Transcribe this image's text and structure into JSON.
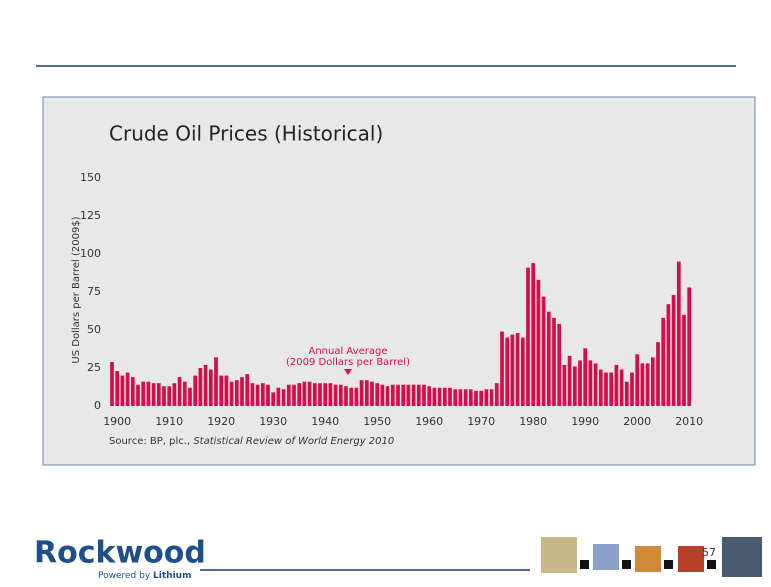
{
  "chart_data": {
    "type": "bar",
    "title": "Crude Oil Prices (Historical)",
    "y_label": "US Dollars per Barrel (2009$)",
    "annotation": [
      "Annual Average",
      "(2009 Dollars per Barrel)"
    ],
    "source": [
      "Source: BP, plc., ",
      "Statistical Review of World Energy 2010"
    ],
    "x": [
      1899,
      1900,
      1901,
      1902,
      1903,
      1904,
      1905,
      1906,
      1907,
      1908,
      1909,
      1910,
      1911,
      1912,
      1913,
      1914,
      1915,
      1916,
      1917,
      1918,
      1919,
      1920,
      1921,
      1922,
      1923,
      1924,
      1925,
      1926,
      1927,
      1928,
      1929,
      1930,
      1931,
      1932,
      1933,
      1934,
      1935,
      1936,
      1937,
      1938,
      1939,
      1940,
      1941,
      1942,
      1943,
      1944,
      1945,
      1946,
      1947,
      1948,
      1949,
      1950,
      1951,
      1952,
      1953,
      1954,
      1955,
      1956,
      1957,
      1958,
      1959,
      1960,
      1961,
      1962,
      1963,
      1964,
      1965,
      1966,
      1967,
      1968,
      1969,
      1970,
      1971,
      1972,
      1973,
      1974,
      1975,
      1976,
      1977,
      1978,
      1979,
      1980,
      1981,
      1982,
      1983,
      1984,
      1985,
      1986,
      1987,
      1988,
      1989,
      1990,
      1991,
      1992,
      1993,
      1994,
      1995,
      1996,
      1997,
      1998,
      1999,
      2000,
      2001,
      2002,
      2003,
      2004,
      2005,
      2006,
      2007,
      2008,
      2009,
      2010
    ],
    "values": [
      29,
      23,
      20,
      22,
      19,
      14,
      16,
      16,
      15,
      15,
      13,
      13,
      15,
      19,
      16,
      12,
      20,
      25,
      27,
      24,
      32,
      20,
      20,
      16,
      17,
      19,
      21,
      15,
      14,
      15,
      14,
      9,
      12,
      11,
      14,
      14,
      15,
      16,
      16,
      15,
      15,
      15,
      15,
      14,
      14,
      13,
      12,
      12,
      17,
      17,
      16,
      15,
      14,
      13,
      14,
      14,
      14,
      14,
      14,
      14,
      14,
      13,
      12,
      12,
      12,
      12,
      11,
      11,
      11,
      11,
      10,
      10,
      11,
      11,
      15,
      49,
      45,
      47,
      48,
      45,
      91,
      94,
      83,
      72,
      62,
      58,
      54,
      27,
      33,
      26,
      30,
      38,
      30,
      28,
      24,
      22,
      22,
      27,
      24,
      16,
      22,
      34,
      28,
      28,
      32,
      42,
      58,
      67,
      73,
      95,
      60,
      78
    ],
    "color": "#d0104c",
    "xlim": [
      1898,
      2011
    ],
    "xticks": [
      1900,
      1910,
      1920,
      1930,
      1940,
      1950,
      1960,
      1970,
      1980,
      1990,
      2000,
      2010
    ],
    "ylim": [
      0,
      150
    ],
    "yticks": [
      0,
      25,
      50,
      75,
      100,
      125,
      150
    ],
    "grid": false
  },
  "logo": {
    "name": "Rockwood",
    "tagline": [
      "Powered by",
      "Lithium"
    ]
  },
  "page_number": "57"
}
